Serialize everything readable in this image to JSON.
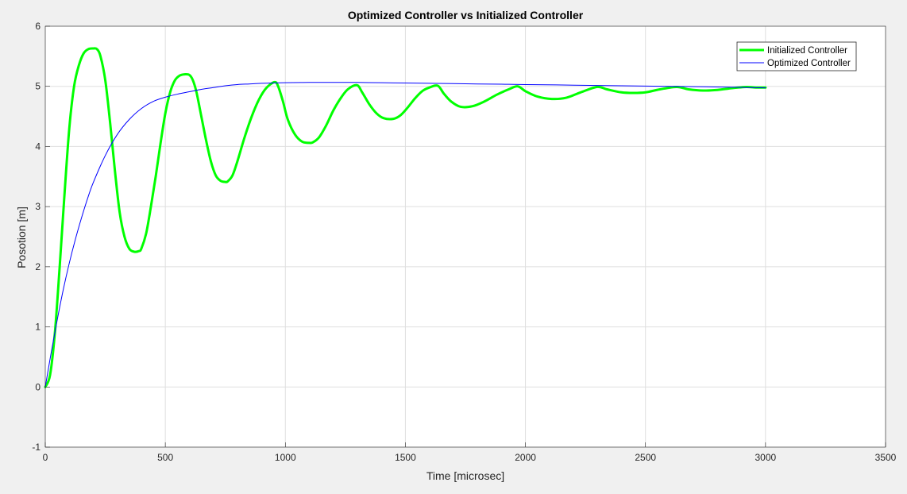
{
  "chart_data": {
    "type": "line",
    "title": "Optimized Controller vs Initialized Controller",
    "xlabel": "Time [microsec]",
    "ylabel": "Posotion [m]",
    "xlim": [
      0,
      3500
    ],
    "ylim": [
      -1,
      6
    ],
    "xticks": [
      0,
      500,
      1000,
      1500,
      2000,
      2500,
      3000,
      3500
    ],
    "yticks": [
      -1,
      0,
      1,
      2,
      3,
      4,
      5,
      6
    ],
    "xtick_labels": [
      "0",
      "500",
      "1000",
      "1500",
      "2000",
      "2500",
      "3000",
      "3500"
    ],
    "ytick_labels": [
      "-1",
      "0",
      "1",
      "2",
      "3",
      "4",
      "5",
      "6"
    ],
    "grid": true,
    "legend_position": "top-right",
    "series": [
      {
        "name": "Initialized Controller",
        "color": "#00ff00",
        "x": [
          0,
          20,
          40,
          60,
          80,
          100,
          120,
          140,
          160,
          180,
          200,
          215,
          230,
          250,
          270,
          290,
          310,
          330,
          350,
          370,
          390,
          400,
          420,
          440,
          460,
          480,
          500,
          520,
          540,
          560,
          580,
          600,
          615,
          630,
          650,
          670,
          690,
          710,
          730,
          750,
          760,
          780,
          800,
          830,
          860,
          890,
          920,
          955,
          970,
          990,
          1010,
          1040,
          1070,
          1100,
          1115,
          1140,
          1170,
          1200,
          1230,
          1260,
          1298,
          1320,
          1350,
          1380,
          1410,
          1450,
          1480,
          1510,
          1540,
          1570,
          1600,
          1635,
          1660,
          1690,
          1730,
          1780,
          1830,
          1880,
          1930,
          1968,
          2000,
          2050,
          2110,
          2170,
          2230,
          2298,
          2340,
          2400,
          2450,
          2500,
          2560,
          2630,
          2680,
          2740,
          2800,
          2860,
          2920,
          2960,
          3000
        ],
        "values": [
          0,
          0.2,
          0.9,
          2.0,
          3.2,
          4.3,
          5.0,
          5.35,
          5.55,
          5.62,
          5.63,
          5.62,
          5.5,
          5.1,
          4.4,
          3.6,
          2.9,
          2.5,
          2.3,
          2.25,
          2.26,
          2.3,
          2.55,
          3.0,
          3.5,
          4.05,
          4.55,
          4.9,
          5.1,
          5.18,
          5.2,
          5.19,
          5.1,
          4.9,
          4.5,
          4.1,
          3.75,
          3.52,
          3.43,
          3.41,
          3.42,
          3.52,
          3.75,
          4.15,
          4.5,
          4.78,
          4.97,
          5.07,
          5.0,
          4.75,
          4.45,
          4.2,
          4.08,
          4.06,
          4.07,
          4.15,
          4.35,
          4.6,
          4.8,
          4.95,
          5.02,
          4.9,
          4.7,
          4.55,
          4.47,
          4.46,
          4.52,
          4.65,
          4.8,
          4.92,
          4.98,
          5.01,
          4.88,
          4.75,
          4.66,
          4.67,
          4.75,
          4.86,
          4.95,
          5.0,
          4.92,
          4.83,
          4.79,
          4.81,
          4.9,
          4.99,
          4.95,
          4.9,
          4.89,
          4.9,
          4.95,
          4.99,
          4.95,
          4.93,
          4.94,
          4.97,
          4.99,
          4.98,
          4.98
        ]
      },
      {
        "name": "Optimized Controller",
        "color": "#0000ff",
        "x": [
          0,
          25,
          50,
          75,
          100,
          125,
          150,
          175,
          200,
          250,
          300,
          350,
          400,
          450,
          500,
          550,
          600,
          650,
          700,
          750,
          800,
          850,
          900,
          950,
          1000,
          1100,
          1200,
          1300,
          1400,
          1500,
          1600,
          1700,
          1800,
          1900,
          2000,
          2200,
          2400,
          2600,
          2800,
          3000
        ],
        "values": [
          0,
          0.58,
          1.12,
          1.62,
          2.06,
          2.45,
          2.8,
          3.12,
          3.4,
          3.85,
          4.2,
          4.45,
          4.63,
          4.75,
          4.82,
          4.87,
          4.91,
          4.95,
          4.98,
          5.01,
          5.03,
          5.04,
          5.05,
          5.055,
          5.06,
          5.065,
          5.065,
          5.065,
          5.06,
          5.055,
          5.05,
          5.045,
          5.04,
          5.035,
          5.03,
          5.02,
          5.01,
          5.0,
          4.99,
          4.975
        ]
      }
    ]
  }
}
